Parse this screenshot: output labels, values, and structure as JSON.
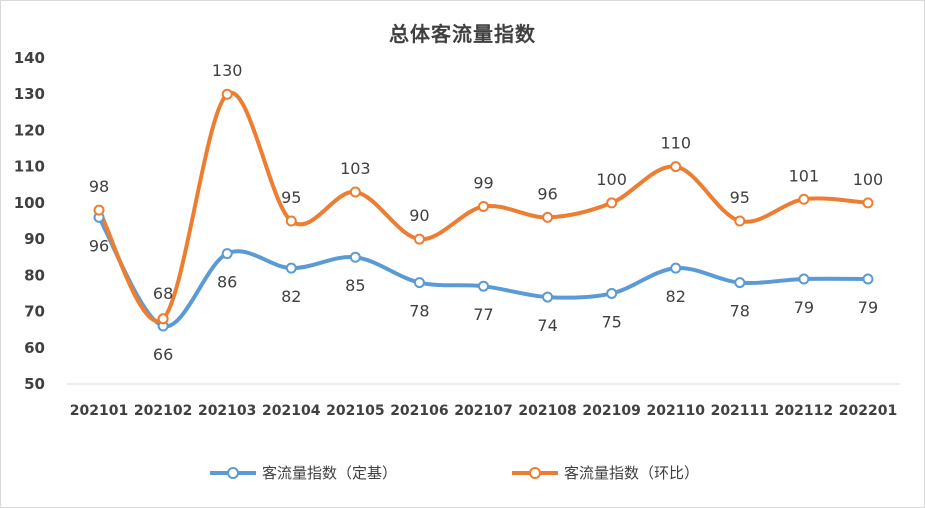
{
  "chart_data": {
    "type": "line",
    "title": "总体客流量指数",
    "categories": [
      "202101",
      "202102",
      "202103",
      "202104",
      "202105",
      "202106",
      "202107",
      "202108",
      "202109",
      "202110",
      "202111",
      "202112",
      "202201"
    ],
    "series": [
      {
        "name": "客流量指数（定基）",
        "color": "#5b9bd5",
        "values": [
          96,
          66,
          86,
          82,
          85,
          78,
          77,
          74,
          75,
          82,
          78,
          79,
          79
        ],
        "labels": [
          "96",
          "66",
          "86",
          "82",
          "85",
          "78",
          "77",
          "74",
          "75",
          "82",
          "78",
          "79",
          "79"
        ]
      },
      {
        "name": "客流量指数（环比）",
        "color": "#ed7d31",
        "values": [
          98,
          68,
          130,
          95,
          103,
          90,
          99,
          96,
          100,
          110,
          95,
          101,
          100
        ],
        "labels": [
          "98",
          "68",
          "130",
          "95",
          "103",
          "90",
          "99",
          "96",
          "100",
          "110",
          "95",
          "101",
          "100"
        ]
      }
    ],
    "ylim": [
      50,
      140
    ],
    "yticks": [
      "50",
      "60",
      "70",
      "80",
      "90",
      "100",
      "110",
      "120",
      "130",
      "140"
    ],
    "grid": false,
    "smooth": true,
    "legend_position": "bottom"
  }
}
